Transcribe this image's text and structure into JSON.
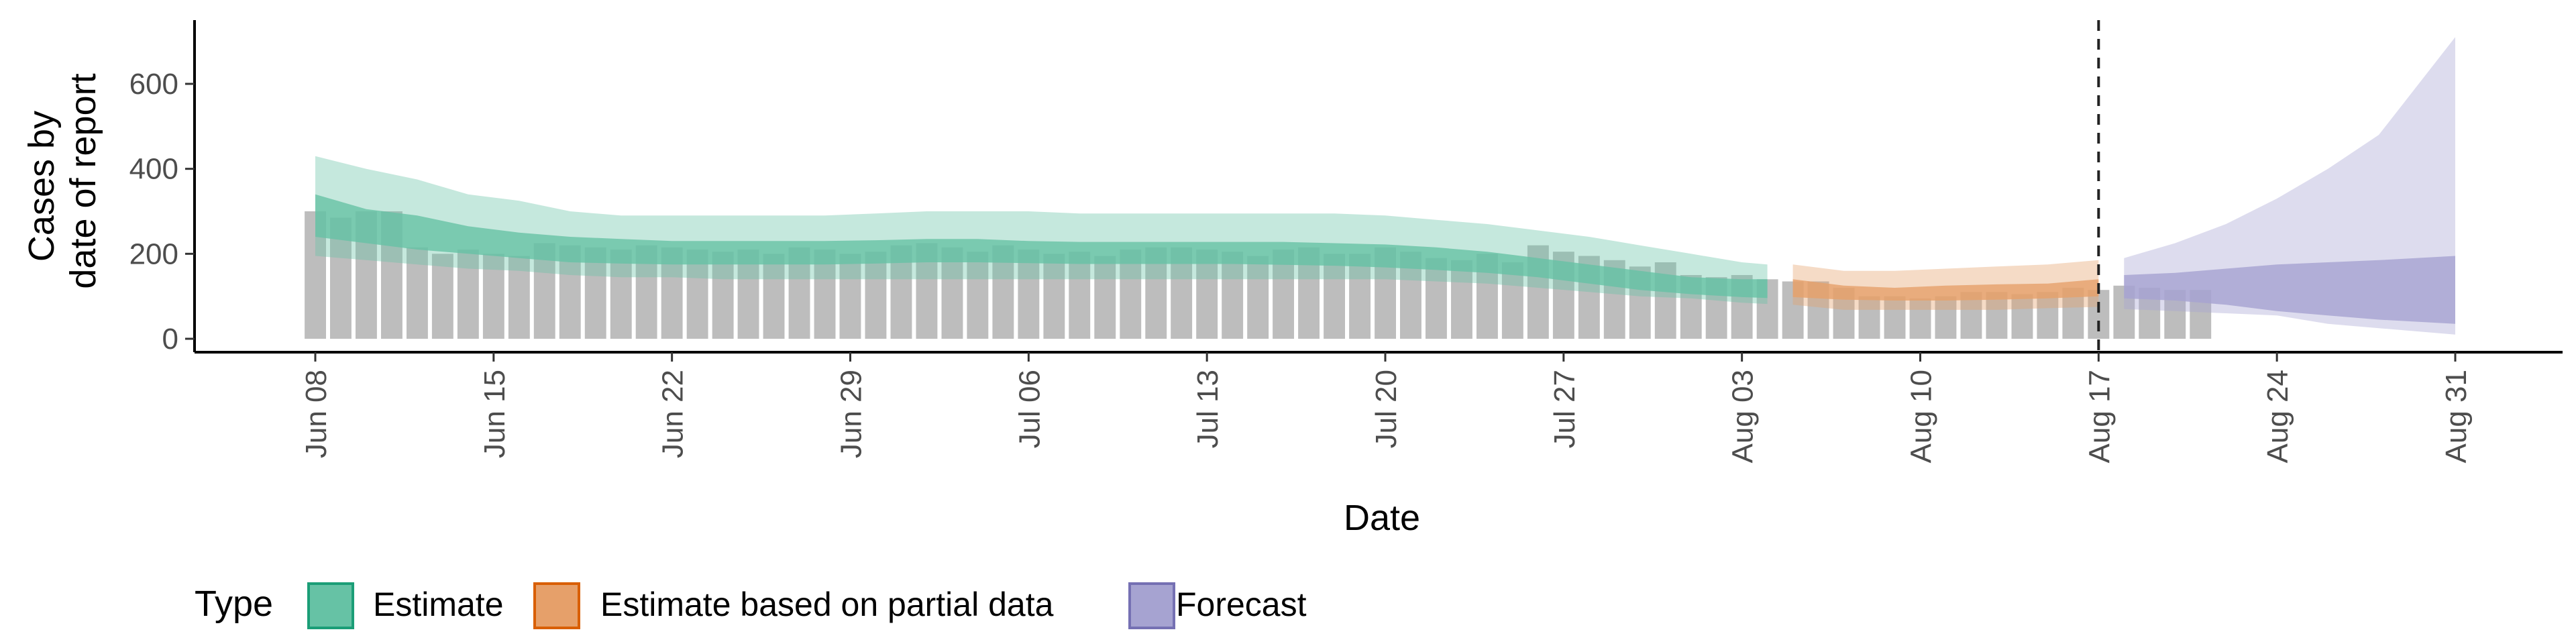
{
  "chart_data": {
    "type": "area",
    "title": "",
    "xlabel": "Date",
    "ylabel_lines": [
      "Cases by",
      "date of report"
    ],
    "x_start": "2020-06-08",
    "x_end": "2020-08-31",
    "ylim": [
      0,
      700
    ],
    "y_ticks": [
      0,
      200,
      400,
      600
    ],
    "x_ticks": [
      {
        "date": "2020-06-08",
        "label": "Jun 08"
      },
      {
        "date": "2020-06-15",
        "label": "Jun 15"
      },
      {
        "date": "2020-06-22",
        "label": "Jun 22"
      },
      {
        "date": "2020-06-29",
        "label": "Jun 29"
      },
      {
        "date": "2020-07-06",
        "label": "Jul 06"
      },
      {
        "date": "2020-07-13",
        "label": "Jul 13"
      },
      {
        "date": "2020-07-20",
        "label": "Jul 20"
      },
      {
        "date": "2020-07-27",
        "label": "Jul 27"
      },
      {
        "date": "2020-08-03",
        "label": "Aug 03"
      },
      {
        "date": "2020-08-10",
        "label": "Aug 10"
      },
      {
        "date": "2020-08-17",
        "label": "Aug 17"
      },
      {
        "date": "2020-08-24",
        "label": "Aug 24"
      },
      {
        "date": "2020-08-31",
        "label": "Aug 31"
      }
    ],
    "vline_date": "2020-08-17",
    "grid": false,
    "legend_position": "bottom",
    "legend_title": "Type",
    "bars_color": "#bdbdbd",
    "reported_cases": {
      "start_date": "2020-06-08",
      "values": [
        300,
        285,
        300,
        300,
        215,
        200,
        210,
        200,
        195,
        225,
        220,
        215,
        210,
        220,
        215,
        210,
        205,
        210,
        200,
        215,
        210,
        200,
        205,
        220,
        225,
        215,
        205,
        220,
        210,
        200,
        205,
        195,
        210,
        215,
        215,
        210,
        205,
        195,
        210,
        215,
        200,
        200,
        215,
        205,
        190,
        185,
        200,
        180,
        220,
        205,
        195,
        185,
        170,
        180,
        150,
        145,
        150,
        140,
        135,
        135,
        120,
        100,
        100,
        95,
        100,
        110,
        110,
        105,
        110,
        120,
        115,
        125,
        120,
        115,
        115
      ]
    },
    "series": [
      {
        "name": "Estimate",
        "color": "#1b9e77",
        "fill": "#66c2a5",
        "dates": [
          "2020-06-08",
          "2020-06-10",
          "2020-06-12",
          "2020-06-14",
          "2020-06-16",
          "2020-06-18",
          "2020-06-20",
          "2020-06-22",
          "2020-06-24",
          "2020-06-26",
          "2020-06-28",
          "2020-06-30",
          "2020-07-02",
          "2020-07-04",
          "2020-07-06",
          "2020-07-08",
          "2020-07-10",
          "2020-07-12",
          "2020-07-14",
          "2020-07-16",
          "2020-07-18",
          "2020-07-20",
          "2020-07-22",
          "2020-07-24",
          "2020-07-26",
          "2020-07-28",
          "2020-07-30",
          "2020-08-01",
          "2020-08-03",
          "2020-08-04"
        ],
        "outer_upper": [
          430,
          400,
          375,
          340,
          325,
          300,
          290,
          290,
          290,
          290,
          290,
          295,
          300,
          300,
          300,
          295,
          295,
          295,
          295,
          295,
          295,
          290,
          280,
          270,
          255,
          240,
          220,
          200,
          180,
          175
        ],
        "outer_lower": [
          195,
          185,
          175,
          165,
          160,
          150,
          145,
          145,
          140,
          140,
          140,
          140,
          140,
          140,
          140,
          140,
          140,
          140,
          140,
          140,
          140,
          140,
          135,
          130,
          120,
          110,
          100,
          95,
          85,
          82
        ],
        "inner_upper": [
          340,
          305,
          290,
          265,
          250,
          240,
          235,
          230,
          230,
          230,
          230,
          232,
          235,
          235,
          230,
          228,
          228,
          228,
          228,
          228,
          225,
          222,
          215,
          205,
          190,
          175,
          160,
          145,
          140,
          140
        ],
        "inner_lower": [
          240,
          225,
          210,
          200,
          190,
          180,
          177,
          175,
          175,
          175,
          175,
          177,
          180,
          180,
          178,
          176,
          176,
          176,
          176,
          174,
          172,
          168,
          162,
          155,
          145,
          130,
          115,
          105,
          98,
          96
        ]
      },
      {
        "name": "Estimate based on partial data",
        "color": "#d95f02",
        "fill": "#e6a06a",
        "dates": [
          "2020-08-05",
          "2020-08-07",
          "2020-08-09",
          "2020-08-11",
          "2020-08-13",
          "2020-08-15",
          "2020-08-17"
        ],
        "outer_upper": [
          175,
          160,
          160,
          165,
          170,
          175,
          185
        ],
        "outer_lower": [
          80,
          68,
          68,
          68,
          68,
          72,
          75
        ],
        "inner_upper": [
          140,
          125,
          120,
          125,
          128,
          130,
          140
        ],
        "inner_lower": [
          98,
          92,
          90,
          90,
          92,
          95,
          100
        ]
      },
      {
        "name": "Forecast",
        "color": "#7570b3",
        "fill": "#a6a3d1",
        "dates": [
          "2020-08-18",
          "2020-08-20",
          "2020-08-22",
          "2020-08-24",
          "2020-08-26",
          "2020-08-28",
          "2020-08-31"
        ],
        "outer_upper": [
          190,
          225,
          270,
          330,
          400,
          480,
          710
        ],
        "outer_lower": [
          70,
          65,
          60,
          55,
          35,
          25,
          10
        ],
        "inner_upper": [
          150,
          155,
          165,
          175,
          180,
          185,
          195
        ],
        "inner_lower": [
          95,
          90,
          80,
          65,
          55,
          45,
          35
        ]
      }
    ]
  }
}
